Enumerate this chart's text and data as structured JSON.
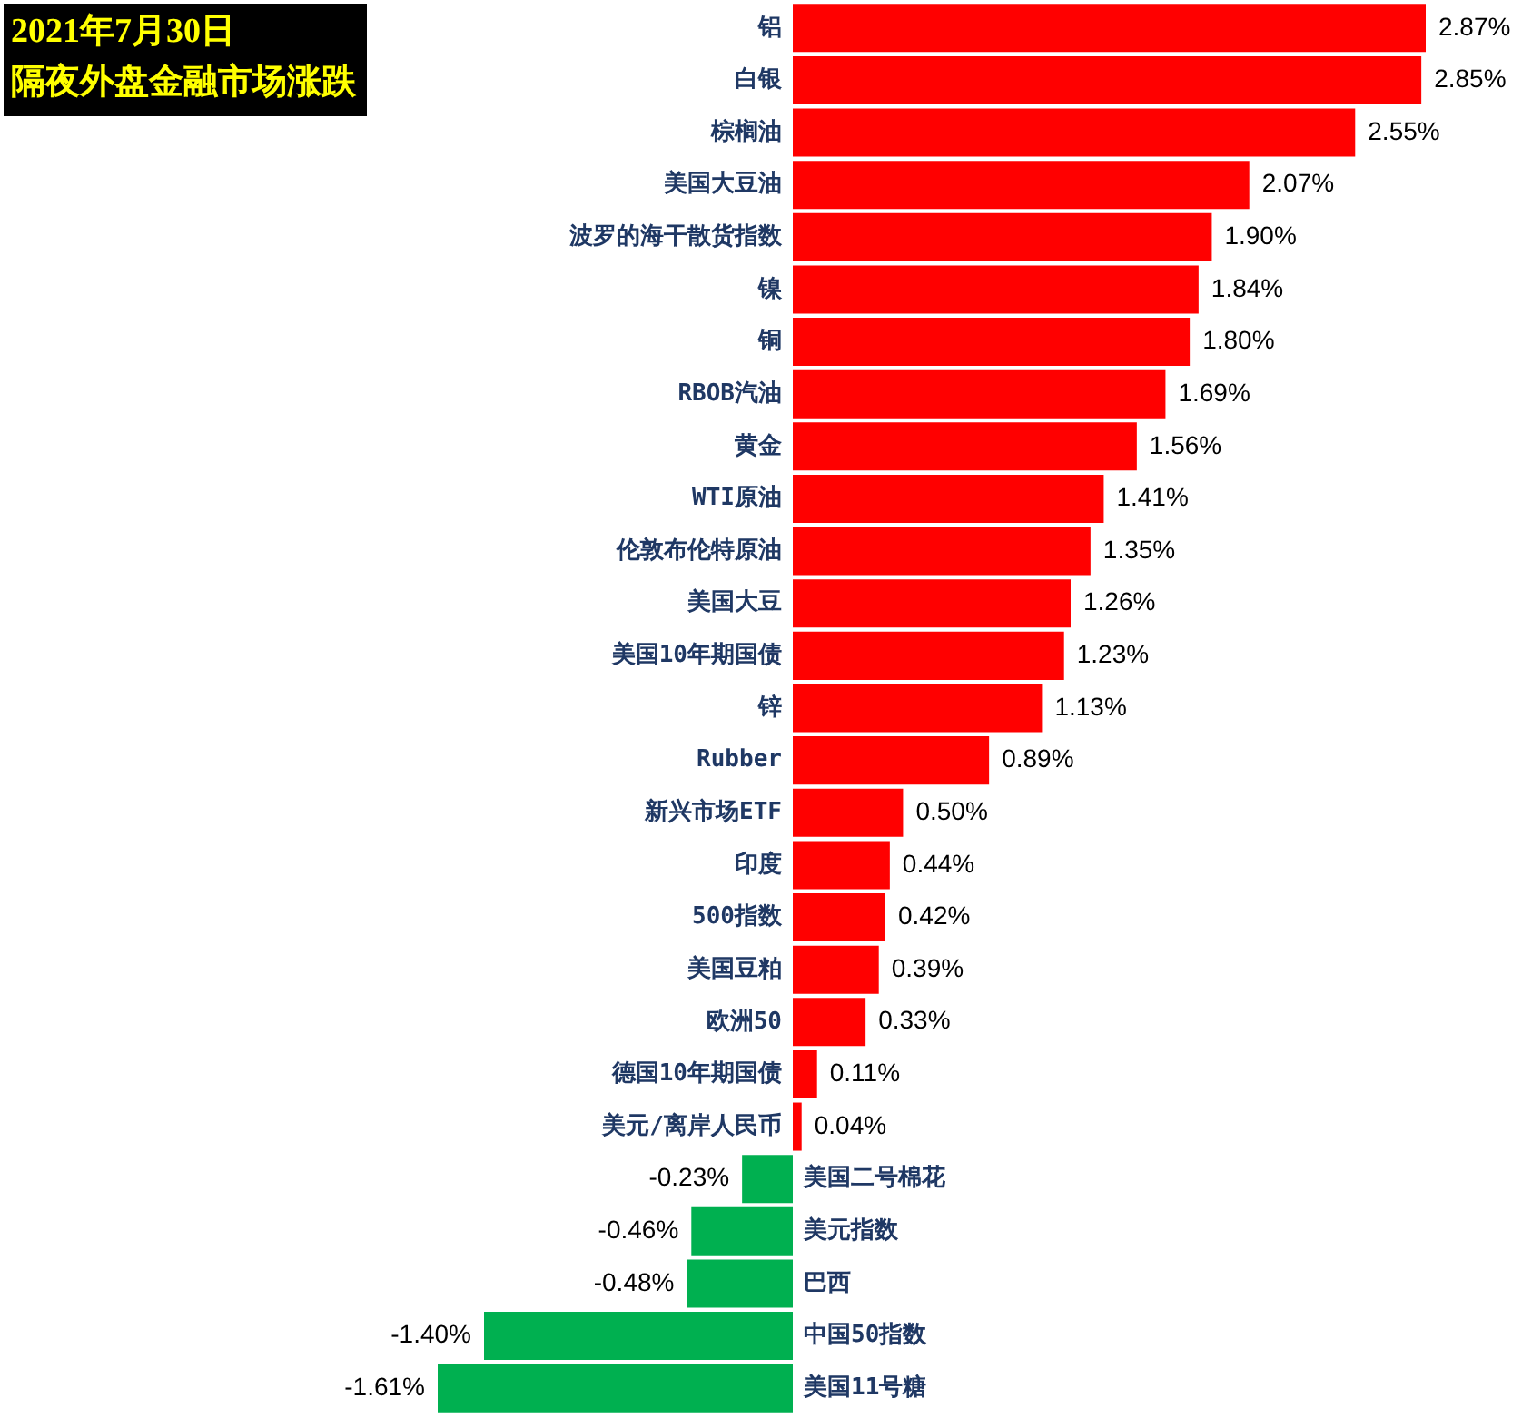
{
  "chart_data": {
    "type": "bar",
    "orientation": "horizontal",
    "title": "2021年7月30日",
    "subtitle": "隔夜外盘金融市场涨跌",
    "categories": [
      "铝",
      "白银",
      "棕榈油",
      "美国大豆油",
      "波罗的海干散货指数",
      "镍",
      "铜",
      "RBOB汽油",
      "黄金",
      "WTI原油",
      "伦敦布伦特原油",
      "美国大豆",
      "美国10年期国债",
      "锌",
      "Rubber",
      "新兴市场ETF",
      "印度",
      "500指数",
      "美国豆粕",
      "欧洲50",
      "德国10年期国债",
      "美元/离岸人民币",
      "美国二号棉花",
      "美元指数",
      "巴西",
      "中国50指数",
      "美国11号糖"
    ],
    "values": [
      2.87,
      2.85,
      2.55,
      2.07,
      1.9,
      1.84,
      1.8,
      1.69,
      1.56,
      1.41,
      1.35,
      1.26,
      1.23,
      1.13,
      0.89,
      0.5,
      0.44,
      0.42,
      0.39,
      0.33,
      0.11,
      0.04,
      -0.23,
      -0.46,
      -0.48,
      -1.4,
      -1.61
    ],
    "value_labels": [
      "2.87%",
      "2.85%",
      "2.55%",
      "2.07%",
      "1.90%",
      "1.84%",
      "1.80%",
      "1.69%",
      "1.56%",
      "1.41%",
      "1.35%",
      "1.26%",
      "1.23%",
      "1.13%",
      "0.89%",
      "0.50%",
      "0.44%",
      "0.42%",
      "0.39%",
      "0.33%",
      "0.11%",
      "0.04%",
      "-0.23%",
      "-0.46%",
      "-0.48%",
      "-1.40%",
      "-1.61%"
    ],
    "colors": [
      "#ff0000",
      "#ff0000",
      "#ff0000",
      "#ff0000",
      "#ff0000",
      "#ff0000",
      "#ff0000",
      "#ff0000",
      "#ff0000",
      "#ff0000",
      "#ff0000",
      "#ff0000",
      "#ff0000",
      "#ff0000",
      "#ff0000",
      "#ff0000",
      "#ff0000",
      "#ff0000",
      "#ff0000",
      "#ff0000",
      "#ff0000",
      "#ff0000",
      "#00b050",
      "#00b050",
      "#00b050",
      "#00b050",
      "#00b050"
    ],
    "legend": false,
    "tick_labels": false
  }
}
